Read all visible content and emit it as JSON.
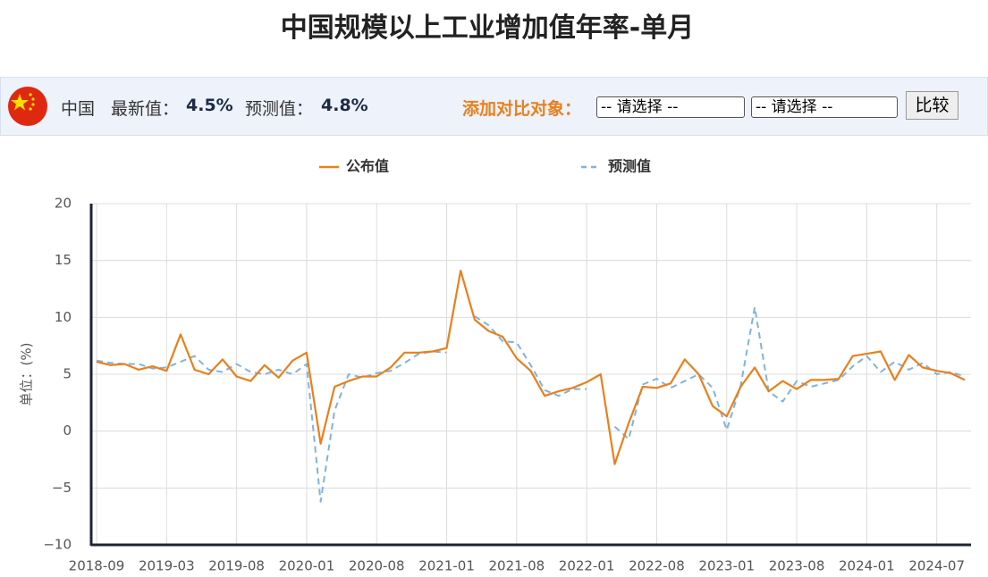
{
  "header": {
    "country": "中国",
    "latest_label": "最新值：",
    "latest_value": "4.5%",
    "forecast_label": "预测值：",
    "forecast_value": "4.8%",
    "compare_label": "添加对比对象：",
    "select_1": "-- 请选择 --",
    "select_2": "-- 请选择 --",
    "button": "比较"
  },
  "chart_data": {
    "type": "line",
    "title": "中国规模以上工业增加值年率-单月",
    "y_label": "单位：(%)",
    "categories": [
      "2018-09",
      null,
      null,
      null,
      null,
      "2019-03",
      null,
      null,
      null,
      null,
      "2019-08",
      null,
      null,
      null,
      null,
      "2020-01",
      null,
      null,
      null,
      null,
      "2020-08",
      null,
      null,
      null,
      null,
      "2021-01",
      null,
      null,
      null,
      null,
      "2021-08",
      null,
      null,
      null,
      null,
      "2022-01",
      null,
      null,
      null,
      null,
      "2022-08",
      null,
      null,
      null,
      null,
      "2023-01",
      null,
      null,
      null,
      null,
      "2023-08",
      null,
      null,
      null,
      null,
      "2024-01",
      null,
      null,
      null,
      null,
      "2024-07",
      null,
      null
    ],
    "series": [
      {
        "name": "公布值",
        "color": "#e8801c",
        "dash": false,
        "values": [
          6.1,
          5.8,
          5.9,
          5.4,
          5.7,
          5.3,
          8.5,
          5.4,
          5.0,
          6.3,
          4.8,
          4.4,
          5.8,
          4.7,
          6.2,
          6.9,
          -1.1,
          3.9,
          4.4,
          4.8,
          4.8,
          5.6,
          6.9,
          6.9,
          7.0,
          7.3,
          14.1,
          9.8,
          8.8,
          8.3,
          6.4,
          5.3,
          3.1,
          3.5,
          3.8,
          4.3,
          5.0,
          -2.9,
          0.7,
          3.9,
          3.8,
          4.2,
          6.3,
          5.0,
          2.2,
          1.3,
          3.9,
          5.6,
          3.5,
          4.4,
          3.7,
          4.5,
          4.5,
          4.6,
          6.6,
          6.8,
          7.0,
          4.5,
          6.7,
          5.6,
          5.3,
          5.1,
          4.5
        ]
      },
      {
        "name": "预测值",
        "color": "#7fb3de",
        "dash": true,
        "values": [
          6.2,
          6.0,
          5.9,
          5.9,
          5.5,
          5.6,
          6.1,
          6.6,
          5.4,
          5.2,
          5.9,
          5.2,
          5.0,
          5.4,
          5.0,
          5.9,
          -6.2,
          1.8,
          5.0,
          4.7,
          5.1,
          5.3,
          6.0,
          6.8,
          7.0,
          6.9,
          null,
          10.1,
          9.3,
          7.9,
          7.8,
          5.8,
          3.6,
          3.1,
          3.7,
          3.7,
          null,
          0.4,
          -0.7,
          4.1,
          4.6,
          3.8,
          4.4,
          5.0,
          3.8,
          0.1,
          4.0,
          10.9,
          3.5,
          2.6,
          4.4,
          3.9,
          4.2,
          4.5,
          5.7,
          6.6,
          5.2,
          6.1,
          5.4,
          6.0,
          5.0,
          5.2,
          4.8
        ]
      }
    ],
    "ylim": [
      -10,
      20
    ],
    "yticks": [
      {
        "value": -10,
        "label": "−10"
      },
      {
        "value": -5,
        "label": "−5"
      },
      0,
      5,
      10,
      15,
      20
    ],
    "grid": true
  }
}
